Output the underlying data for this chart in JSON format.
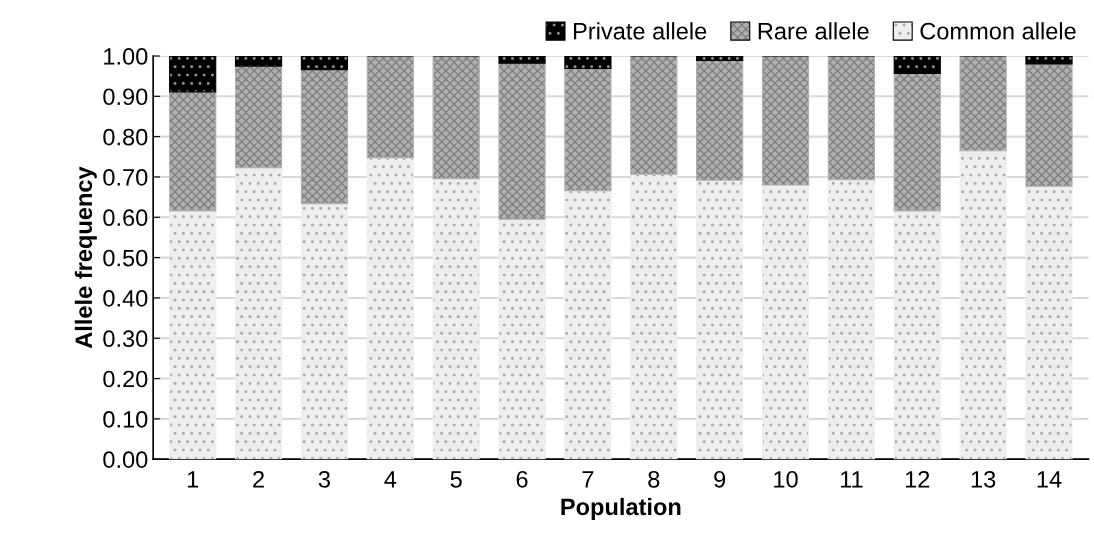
{
  "chart_data": {
    "type": "bar",
    "stacked": true,
    "xlabel": "Population",
    "ylabel": "Allele frequency",
    "categories": [
      "1",
      "2",
      "3",
      "4",
      "5",
      "6",
      "7",
      "8",
      "9",
      "10",
      "11",
      "12",
      "13",
      "14"
    ],
    "series": [
      {
        "name": "Common allele",
        "color": "#eeeeee",
        "values": [
          0.616,
          0.723,
          0.634,
          0.748,
          0.696,
          0.595,
          0.666,
          0.707,
          0.692,
          0.68,
          0.693,
          0.616,
          0.765,
          0.677
        ]
      },
      {
        "name": "Rare allele",
        "color": "#b0b0b0",
        "values": [
          0.295,
          0.252,
          0.332,
          0.252,
          0.304,
          0.387,
          0.303,
          0.293,
          0.297,
          0.32,
          0.307,
          0.341,
          0.235,
          0.303
        ]
      },
      {
        "name": "Private allele",
        "color": "#000000",
        "values": [
          0.089,
          0.025,
          0.034,
          0,
          0,
          0.018,
          0.031,
          0,
          0.011,
          0,
          0,
          0.043,
          0,
          0.02
        ]
      }
    ],
    "ylim": [
      0,
      1
    ],
    "yticks": [
      {
        "value": 0,
        "label": "0.00"
      },
      {
        "value": 0.1,
        "label": "0.10"
      },
      {
        "value": 0.2,
        "label": "0.20"
      },
      {
        "value": 0.3,
        "label": "0.30"
      },
      {
        "value": 0.4,
        "label": "0.40"
      },
      {
        "value": 0.5,
        "label": "0.50"
      },
      {
        "value": 0.6,
        "label": "0.60"
      },
      {
        "value": 0.7,
        "label": "0.70"
      },
      {
        "value": 0.8,
        "label": "0.80"
      },
      {
        "value": 0.9,
        "label": "0.90"
      },
      {
        "value": 1.0,
        "label": "1.00"
      }
    ],
    "grid": "y",
    "legend": "top right"
  }
}
